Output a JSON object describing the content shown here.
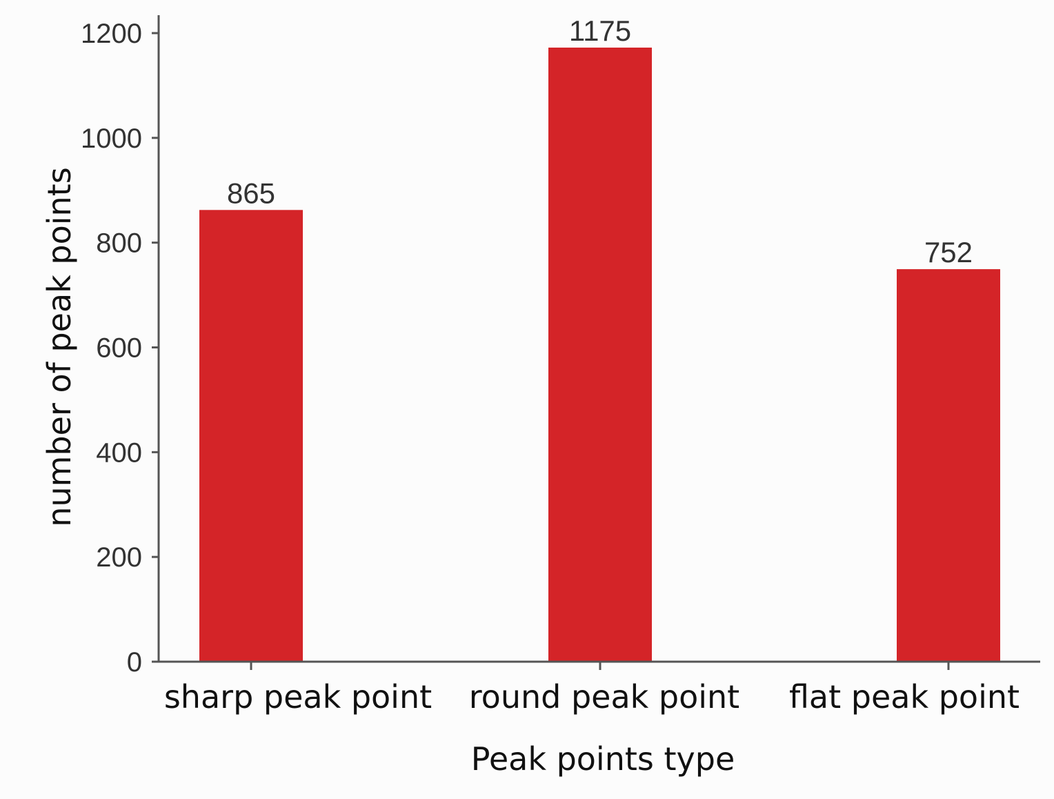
{
  "chart_data": {
    "type": "bar",
    "categories": [
      "sharp peak point",
      "round peak point",
      "flat peak point"
    ],
    "values": [
      865,
      1175,
      752
    ],
    "value_labels": [
      "865",
      "1175",
      "752"
    ],
    "title": "",
    "xlabel": "Peak points type",
    "ylabel": "number of peak points",
    "ylim": [
      0,
      1200
    ],
    "yticks": [
      0,
      200,
      400,
      600,
      800,
      1000,
      1200
    ],
    "ytick_labels": [
      "0",
      "200",
      "400",
      "600",
      "800",
      "1000",
      "1200"
    ],
    "grid": false,
    "legend": "none",
    "colors": {
      "bar": "#d42428",
      "axis": "#555555",
      "text": "#111111"
    }
  }
}
